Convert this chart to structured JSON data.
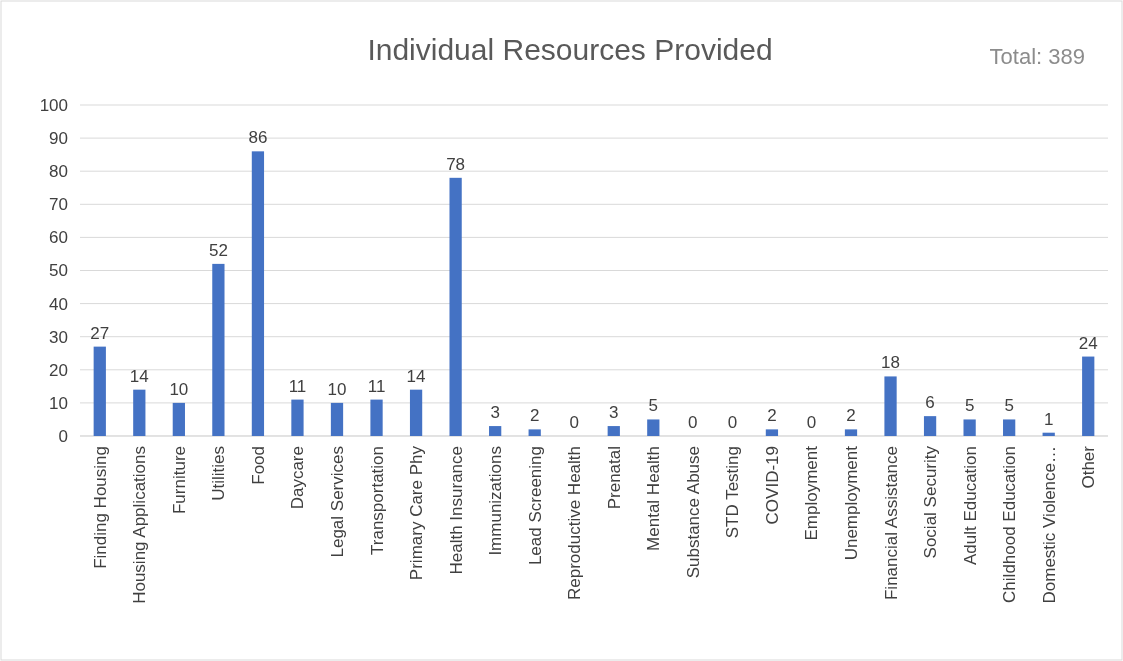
{
  "chart_data": {
    "type": "bar",
    "title": "Individual Resources Provided",
    "annotations": [
      "Total: 389"
    ],
    "categories": [
      "Finding Housing",
      "Housing Applications",
      "Furniture",
      "Utilities",
      "Food",
      "Daycare",
      "Legal Services",
      "Transportation",
      "Primary Care Phy",
      "Health Insurance",
      "Immunizations",
      "Lead Screening",
      "Reproductive Health",
      "Prenatal",
      "Mental Health",
      "Substance Abuse",
      "STD Testing",
      "COVID-19",
      "Employment",
      "Unemployment",
      "Financial Assistance",
      "Social Security",
      "Adult Education",
      "Childhood Education",
      "Domestic Violence…",
      "Other"
    ],
    "values": [
      27,
      14,
      10,
      52,
      86,
      11,
      10,
      11,
      14,
      78,
      3,
      2,
      0,
      3,
      5,
      0,
      0,
      2,
      0,
      2,
      18,
      6,
      5,
      5,
      1,
      24
    ],
    "color": "#4472c4",
    "ylim": [
      0,
      100
    ],
    "yticks": [
      0,
      10,
      20,
      30,
      40,
      50,
      60,
      70,
      80,
      90,
      100
    ],
    "grid": "y",
    "data_labels": true
  }
}
